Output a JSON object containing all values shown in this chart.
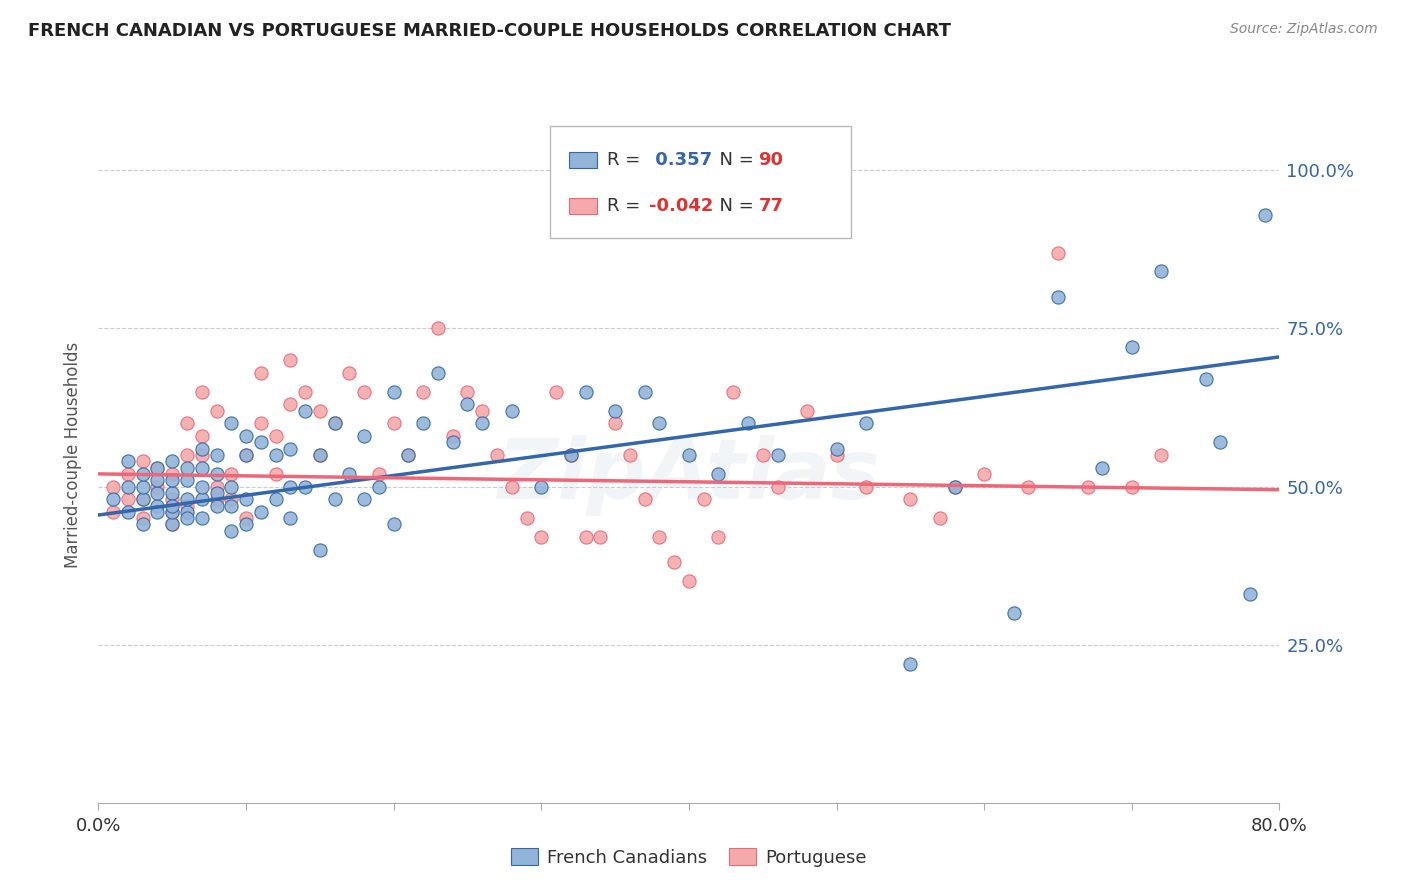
{
  "title": "FRENCH CANADIAN VS PORTUGUESE MARRIED-COUPLE HOUSEHOLDS CORRELATION CHART",
  "source": "Source: ZipAtlas.com",
  "ylabel": "Married-couple Households",
  "xmin": 0.0,
  "xmax": 0.8,
  "ymin": 0.0,
  "ymax": 1.1,
  "ytick_positions": [
    0.25,
    0.5,
    0.75,
    1.0
  ],
  "ytick_labels": [
    "25.0%",
    "50.0%",
    "75.0%",
    "100.0%"
  ],
  "r_blue": 0.357,
  "n_blue": 90,
  "r_pink": -0.042,
  "n_pink": 77,
  "blue_color": "#92B4D8",
  "pink_color": "#F4AAAA",
  "line_blue": "#3366AA",
  "line_pink": "#EE6677",
  "blue_line_start_y": 0.455,
  "blue_line_end_y": 0.705,
  "pink_line_start_y": 0.52,
  "pink_line_end_y": 0.495,
  "blue_scatter_x": [
    0.01,
    0.02,
    0.02,
    0.02,
    0.03,
    0.03,
    0.03,
    0.03,
    0.04,
    0.04,
    0.04,
    0.04,
    0.04,
    0.05,
    0.05,
    0.05,
    0.05,
    0.05,
    0.05,
    0.06,
    0.06,
    0.06,
    0.06,
    0.06,
    0.07,
    0.07,
    0.07,
    0.07,
    0.07,
    0.08,
    0.08,
    0.08,
    0.08,
    0.09,
    0.09,
    0.09,
    0.09,
    0.1,
    0.1,
    0.1,
    0.1,
    0.11,
    0.11,
    0.12,
    0.12,
    0.13,
    0.13,
    0.13,
    0.14,
    0.14,
    0.15,
    0.15,
    0.16,
    0.16,
    0.17,
    0.18,
    0.18,
    0.19,
    0.2,
    0.2,
    0.21,
    0.22,
    0.23,
    0.24,
    0.25,
    0.26,
    0.28,
    0.3,
    0.32,
    0.33,
    0.35,
    0.37,
    0.38,
    0.4,
    0.42,
    0.44,
    0.46,
    0.5,
    0.52,
    0.55,
    0.58,
    0.62,
    0.65,
    0.68,
    0.7,
    0.72,
    0.75,
    0.76,
    0.78,
    0.79
  ],
  "blue_scatter_y": [
    0.48,
    0.5,
    0.46,
    0.54,
    0.48,
    0.5,
    0.52,
    0.44,
    0.47,
    0.49,
    0.51,
    0.46,
    0.53,
    0.44,
    0.46,
    0.49,
    0.51,
    0.54,
    0.47,
    0.46,
    0.48,
    0.51,
    0.53,
    0.45,
    0.45,
    0.48,
    0.5,
    0.53,
    0.56,
    0.47,
    0.49,
    0.52,
    0.55,
    0.43,
    0.47,
    0.5,
    0.6,
    0.44,
    0.48,
    0.55,
    0.58,
    0.46,
    0.57,
    0.48,
    0.55,
    0.45,
    0.5,
    0.56,
    0.5,
    0.62,
    0.4,
    0.55,
    0.48,
    0.6,
    0.52,
    0.48,
    0.58,
    0.5,
    0.44,
    0.65,
    0.55,
    0.6,
    0.68,
    0.57,
    0.63,
    0.6,
    0.62,
    0.5,
    0.55,
    0.65,
    0.62,
    0.65,
    0.6,
    0.55,
    0.52,
    0.6,
    0.55,
    0.56,
    0.6,
    0.22,
    0.5,
    0.3,
    0.8,
    0.53,
    0.72,
    0.84,
    0.67,
    0.57,
    0.33,
    0.93
  ],
  "pink_scatter_x": [
    0.01,
    0.01,
    0.02,
    0.02,
    0.03,
    0.03,
    0.03,
    0.04,
    0.04,
    0.05,
    0.05,
    0.05,
    0.05,
    0.06,
    0.06,
    0.06,
    0.07,
    0.07,
    0.07,
    0.08,
    0.08,
    0.08,
    0.09,
    0.09,
    0.1,
    0.1,
    0.11,
    0.11,
    0.12,
    0.12,
    0.13,
    0.13,
    0.14,
    0.15,
    0.15,
    0.16,
    0.17,
    0.18,
    0.19,
    0.2,
    0.21,
    0.22,
    0.23,
    0.24,
    0.25,
    0.26,
    0.27,
    0.28,
    0.29,
    0.3,
    0.31,
    0.32,
    0.33,
    0.34,
    0.35,
    0.36,
    0.37,
    0.38,
    0.39,
    0.4,
    0.41,
    0.42,
    0.43,
    0.45,
    0.46,
    0.48,
    0.5,
    0.52,
    0.55,
    0.57,
    0.58,
    0.6,
    0.63,
    0.65,
    0.67,
    0.7,
    0.72
  ],
  "pink_scatter_y": [
    0.5,
    0.46,
    0.48,
    0.52,
    0.45,
    0.54,
    0.48,
    0.5,
    0.53,
    0.46,
    0.52,
    0.48,
    0.44,
    0.55,
    0.6,
    0.47,
    0.55,
    0.65,
    0.58,
    0.5,
    0.62,
    0.48,
    0.52,
    0.48,
    0.55,
    0.45,
    0.6,
    0.68,
    0.58,
    0.52,
    0.63,
    0.7,
    0.65,
    0.62,
    0.55,
    0.6,
    0.68,
    0.65,
    0.52,
    0.6,
    0.55,
    0.65,
    0.75,
    0.58,
    0.65,
    0.62,
    0.55,
    0.5,
    0.45,
    0.42,
    0.65,
    0.55,
    0.42,
    0.42,
    0.6,
    0.55,
    0.48,
    0.42,
    0.38,
    0.35,
    0.48,
    0.42,
    0.65,
    0.55,
    0.5,
    0.62,
    0.55,
    0.5,
    0.48,
    0.45,
    0.5,
    0.52,
    0.5,
    0.87,
    0.5,
    0.5,
    0.55
  ]
}
